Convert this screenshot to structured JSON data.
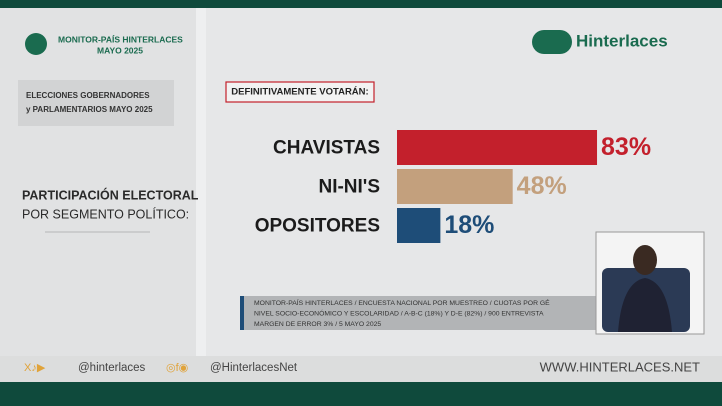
{
  "header": {
    "program": "MONITOR-PAÍS HINTERLACES",
    "date": "MAYO 2025",
    "brand": "Hinterlaces"
  },
  "side": {
    "election_line1": "ELECCIONES GOBERNADORES",
    "election_line2": "y PARLAMENTARIOS MAYO 2025",
    "topic_line1": "PARTICIPACIÓN ELECTORAL",
    "topic_line2": "POR SEGMENTO POLÍTICO:"
  },
  "chart_data": {
    "type": "hbar",
    "title": "DEFINITIVAMENTE VOTARÁN:",
    "categories": [
      "CHAVISTAS",
      "NI-NI'S",
      "OPOSITORES"
    ],
    "values": [
      83,
      48,
      18
    ],
    "value_labels": [
      "83%",
      "48%",
      "18%"
    ],
    "colors": [
      "#c3202c",
      "#c3a07d",
      "#1e4d78"
    ]
  },
  "footnote": [
    "MONITOR-PAÍS HINTERLACES / ENCUESTA NACIONAL POR MUESTREO / CUOTAS POR GÉ",
    "NIVEL SOCIO-ECONÓMICO Y ESCOLARIDAD / A-B-C (18%) Y D-E (82%) / 900 ENTREVISTA",
    "MARGEN DE ERROR 3% / 5 MAYO 2025"
  ],
  "footer": {
    "handle": "@hinterlaces",
    "handle2": "@HinterlacesNet",
    "website": "WWW.HINTERLACES.NET"
  }
}
